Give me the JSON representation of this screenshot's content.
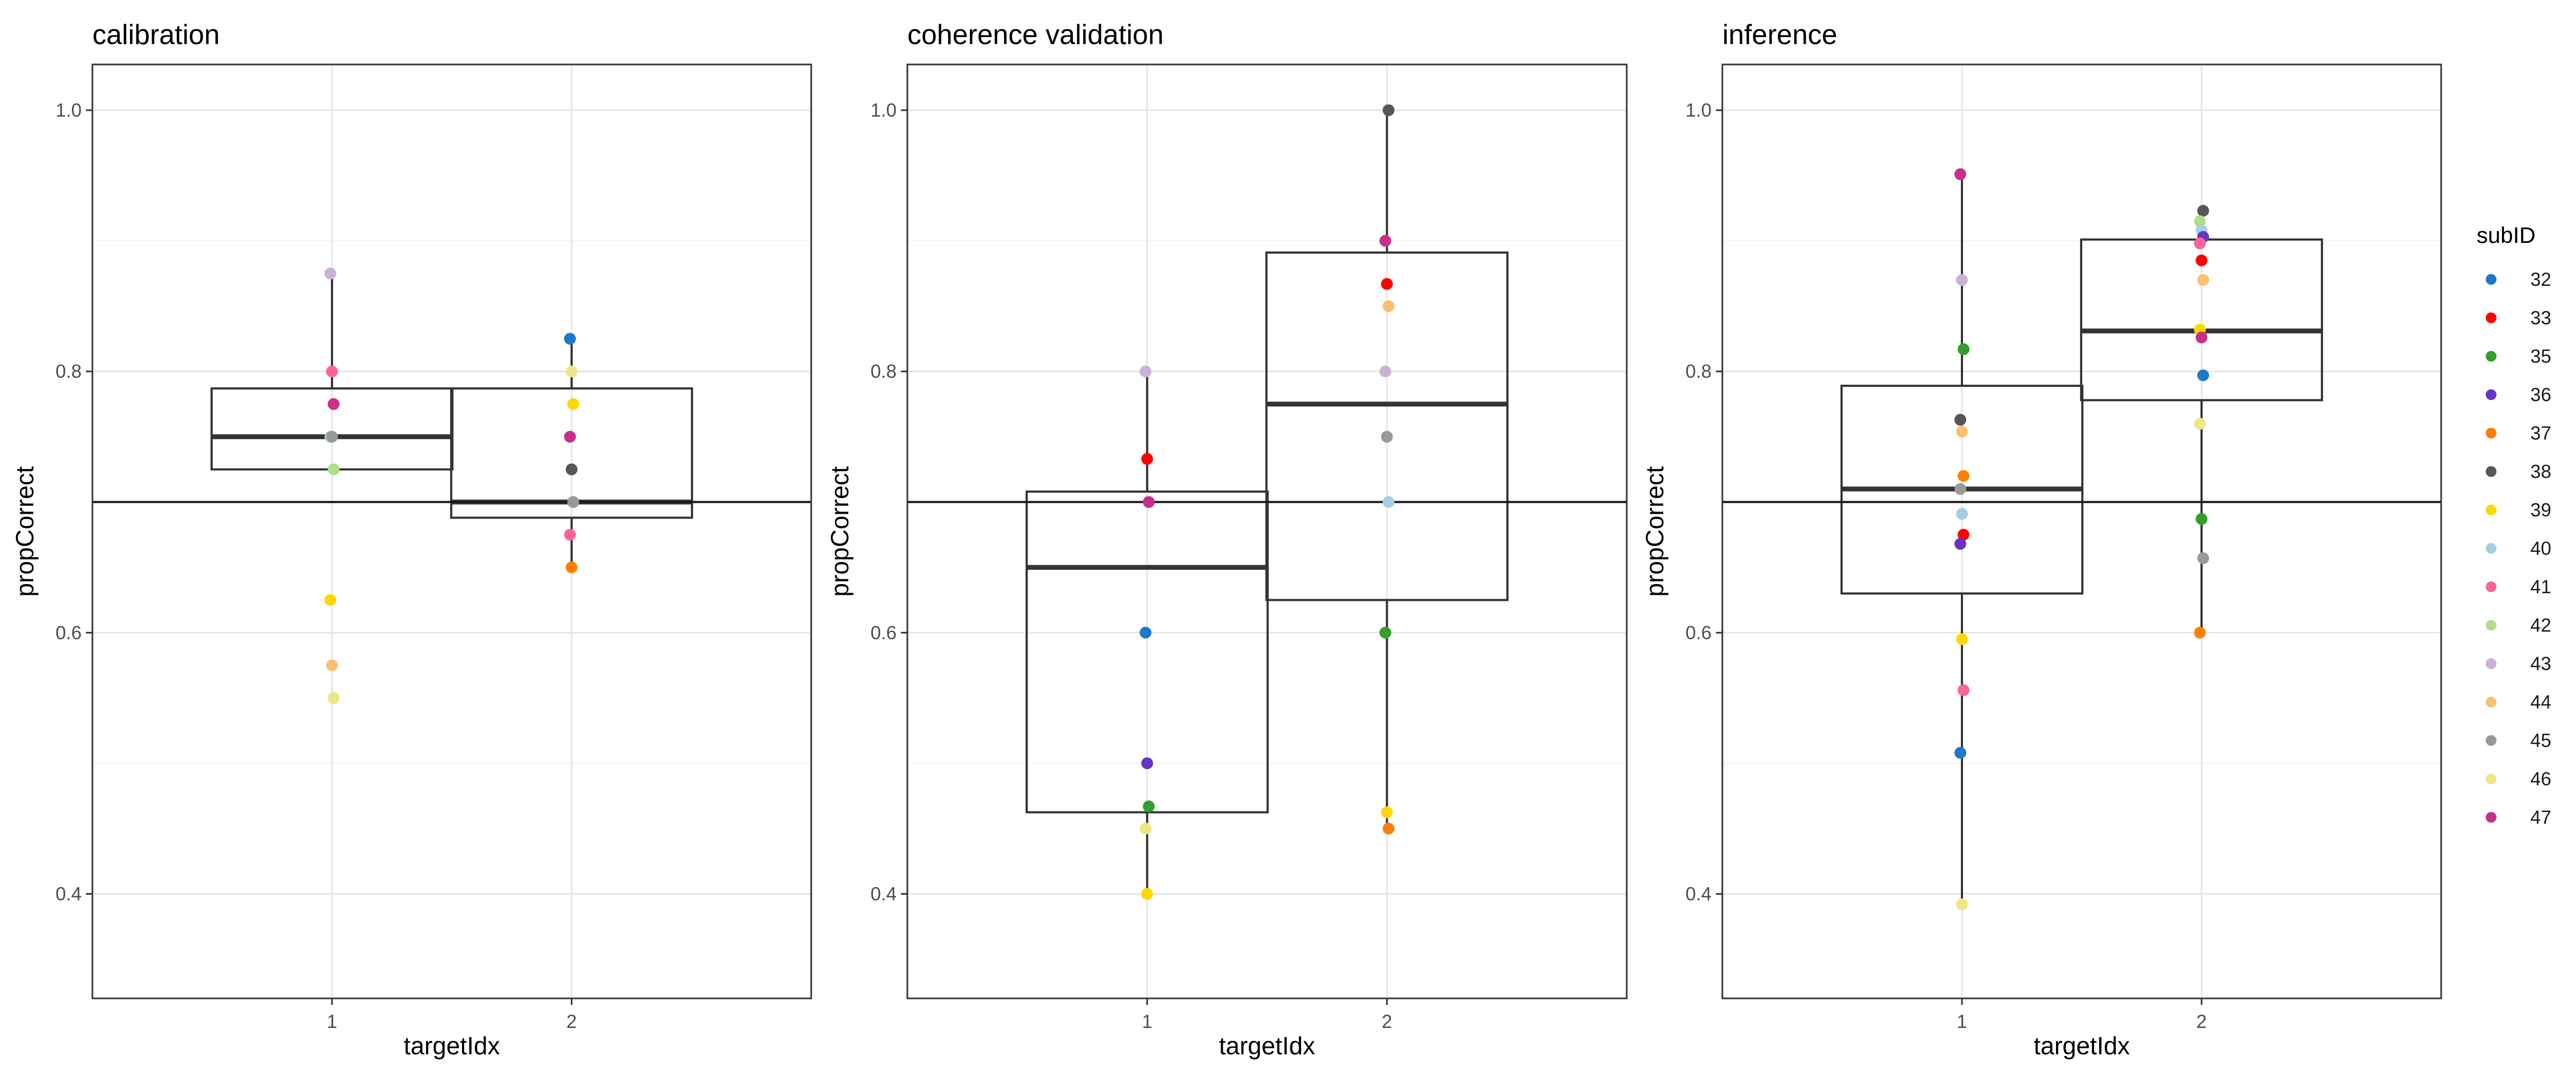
{
  "figure": {
    "legend_title": "subID",
    "xlabel": "targetIdx",
    "ylabel": "propCorrect"
  },
  "legend": {
    "position": "right",
    "entries": [
      {
        "label": "32",
        "color": "#1f78c8"
      },
      {
        "label": "33",
        "color": "#ff0000"
      },
      {
        "label": "35",
        "color": "#33a02c"
      },
      {
        "label": "36",
        "color": "#6a33c2"
      },
      {
        "label": "37",
        "color": "#ff7f00"
      },
      {
        "label": "38",
        "color": "#565656"
      },
      {
        "label": "39",
        "color": "#ffd700"
      },
      {
        "label": "40",
        "color": "#a6cee3"
      },
      {
        "label": "41",
        "color": "#fb6496"
      },
      {
        "label": "42",
        "color": "#b2df8a"
      },
      {
        "label": "43",
        "color": "#cab2d6"
      },
      {
        "label": "44",
        "color": "#fdbf6f"
      },
      {
        "label": "45",
        "color": "#999999"
      },
      {
        "label": "46",
        "color": "#eee685"
      },
      {
        "label": "47",
        "color": "#c8308c"
      }
    ]
  },
  "chart_data": [
    {
      "type": "box+scatter",
      "title": "calibration",
      "xlabel": "targetIdx",
      "ylabel": "propCorrect",
      "categories": [
        "1",
        "2"
      ],
      "ylim": [
        0.32,
        1.035
      ],
      "yticks": [
        0.4,
        0.6,
        0.8,
        1.0
      ],
      "ytick_labels": [
        "0.4",
        "0.6",
        "0.8",
        "1.0"
      ],
      "reference_line": 0.7,
      "grid": true,
      "boxes": [
        {
          "x": "1",
          "lower": 0.725,
          "median": 0.75,
          "upper": 0.787,
          "whisker_low": 0.725,
          "whisker_high": 0.875
        },
        {
          "x": "2",
          "lower": 0.688,
          "median": 0.7,
          "upper": 0.787,
          "whisker_low": 0.65,
          "whisker_high": 0.825
        }
      ],
      "points": [
        {
          "x": "1",
          "y": 0.875,
          "subID": "43"
        },
        {
          "x": "1",
          "y": 0.8,
          "subID": "41"
        },
        {
          "x": "1",
          "y": 0.775,
          "subID": "47"
        },
        {
          "x": "1",
          "y": 0.75,
          "subID": "40"
        },
        {
          "x": "1",
          "y": 0.75,
          "subID": "45"
        },
        {
          "x": "1",
          "y": 0.725,
          "subID": "42"
        },
        {
          "x": "1",
          "y": 0.625,
          "subID": "39"
        },
        {
          "x": "1",
          "y": 0.575,
          "subID": "44"
        },
        {
          "x": "1",
          "y": 0.55,
          "subID": "46"
        },
        {
          "x": "2",
          "y": 0.825,
          "subID": "32"
        },
        {
          "x": "2",
          "y": 0.8,
          "subID": "46"
        },
        {
          "x": "2",
          "y": 0.775,
          "subID": "39"
        },
        {
          "x": "2",
          "y": 0.75,
          "subID": "47"
        },
        {
          "x": "2",
          "y": 0.725,
          "subID": "38"
        },
        {
          "x": "2",
          "y": 0.7,
          "subID": "45"
        },
        {
          "x": "2",
          "y": 0.675,
          "subID": "41"
        },
        {
          "x": "2",
          "y": 0.65,
          "subID": "37"
        }
      ]
    },
    {
      "type": "box+scatter",
      "title": "coherence validation",
      "xlabel": "targetIdx",
      "ylabel": "propCorrect",
      "categories": [
        "1",
        "2"
      ],
      "ylim": [
        0.32,
        1.035
      ],
      "yticks": [
        0.4,
        0.6,
        0.8,
        1.0
      ],
      "ytick_labels": [
        "0.4",
        "0.6",
        "0.8",
        "1.0"
      ],
      "reference_line": 0.7,
      "grid": true,
      "boxes": [
        {
          "x": "1",
          "lower": 0.4625,
          "median": 0.65,
          "upper": 0.708,
          "whisker_low": 0.4,
          "whisker_high": 0.8
        },
        {
          "x": "2",
          "lower": 0.625,
          "median": 0.775,
          "upper": 0.891,
          "whisker_low": 0.45,
          "whisker_high": 1.0
        }
      ],
      "points": [
        {
          "x": "1",
          "y": 0.8,
          "subID": "43"
        },
        {
          "x": "1",
          "y": 0.733,
          "subID": "33"
        },
        {
          "x": "1",
          "y": 0.7,
          "subID": "47"
        },
        {
          "x": "1",
          "y": 0.6,
          "subID": "32"
        },
        {
          "x": "1",
          "y": 0.5,
          "subID": "36"
        },
        {
          "x": "1",
          "y": 0.467,
          "subID": "35"
        },
        {
          "x": "1",
          "y": 0.45,
          "subID": "46"
        },
        {
          "x": "1",
          "y": 0.4,
          "subID": "39"
        },
        {
          "x": "2",
          "y": 1.0,
          "subID": "38"
        },
        {
          "x": "2",
          "y": 0.9,
          "subID": "47"
        },
        {
          "x": "2",
          "y": 0.867,
          "subID": "33"
        },
        {
          "x": "2",
          "y": 0.85,
          "subID": "44"
        },
        {
          "x": "2",
          "y": 0.8,
          "subID": "43"
        },
        {
          "x": "2",
          "y": 0.75,
          "subID": "45"
        },
        {
          "x": "2",
          "y": 0.7,
          "subID": "40"
        },
        {
          "x": "2",
          "y": 0.6,
          "subID": "35"
        },
        {
          "x": "2",
          "y": 0.4625,
          "subID": "39"
        },
        {
          "x": "2",
          "y": 0.45,
          "subID": "37"
        }
      ]
    },
    {
      "type": "box+scatter",
      "title": "inference",
      "xlabel": "targetIdx",
      "ylabel": "propCorrect",
      "categories": [
        "1",
        "2"
      ],
      "ylim": [
        0.32,
        1.035
      ],
      "yticks": [
        0.4,
        0.6,
        0.8,
        1.0
      ],
      "ytick_labels": [
        "0.4",
        "0.6",
        "0.8",
        "1.0"
      ],
      "reference_line": 0.7,
      "grid": true,
      "boxes": [
        {
          "x": "1",
          "lower": 0.63,
          "median": 0.71,
          "upper": 0.789,
          "whisker_low": 0.392,
          "whisker_high": 0.951
        },
        {
          "x": "2",
          "lower": 0.778,
          "median": 0.831,
          "upper": 0.901,
          "whisker_low": 0.6,
          "whisker_high": 0.923
        }
      ],
      "points": [
        {
          "x": "1",
          "y": 0.951,
          "subID": "47"
        },
        {
          "x": "1",
          "y": 0.87,
          "subID": "43"
        },
        {
          "x": "1",
          "y": 0.817,
          "subID": "35"
        },
        {
          "x": "1",
          "y": 0.763,
          "subID": "38"
        },
        {
          "x": "1",
          "y": 0.754,
          "subID": "44"
        },
        {
          "x": "1",
          "y": 0.72,
          "subID": "37"
        },
        {
          "x": "1",
          "y": 0.71,
          "subID": "45"
        },
        {
          "x": "1",
          "y": 0.691,
          "subID": "40"
        },
        {
          "x": "1",
          "y": 0.675,
          "subID": "33"
        },
        {
          "x": "1",
          "y": 0.668,
          "subID": "36"
        },
        {
          "x": "1",
          "y": 0.595,
          "subID": "39"
        },
        {
          "x": "1",
          "y": 0.556,
          "subID": "41"
        },
        {
          "x": "1",
          "y": 0.508,
          "subID": "32"
        },
        {
          "x": "1",
          "y": 0.392,
          "subID": "46"
        },
        {
          "x": "2",
          "y": 0.923,
          "subID": "38"
        },
        {
          "x": "2",
          "y": 0.915,
          "subID": "42"
        },
        {
          "x": "2",
          "y": 0.908,
          "subID": "40"
        },
        {
          "x": "2",
          "y": 0.903,
          "subID": "36"
        },
        {
          "x": "2",
          "y": 0.898,
          "subID": "41"
        },
        {
          "x": "2",
          "y": 0.885,
          "subID": "33"
        },
        {
          "x": "2",
          "y": 0.87,
          "subID": "44"
        },
        {
          "x": "2",
          "y": 0.832,
          "subID": "39"
        },
        {
          "x": "2",
          "y": 0.826,
          "subID": "47"
        },
        {
          "x": "2",
          "y": 0.797,
          "subID": "32"
        },
        {
          "x": "2",
          "y": 0.76,
          "subID": "46"
        },
        {
          "x": "2",
          "y": 0.687,
          "subID": "35"
        },
        {
          "x": "2",
          "y": 0.657,
          "subID": "45"
        },
        {
          "x": "2",
          "y": 0.6,
          "subID": "37"
        }
      ]
    }
  ]
}
